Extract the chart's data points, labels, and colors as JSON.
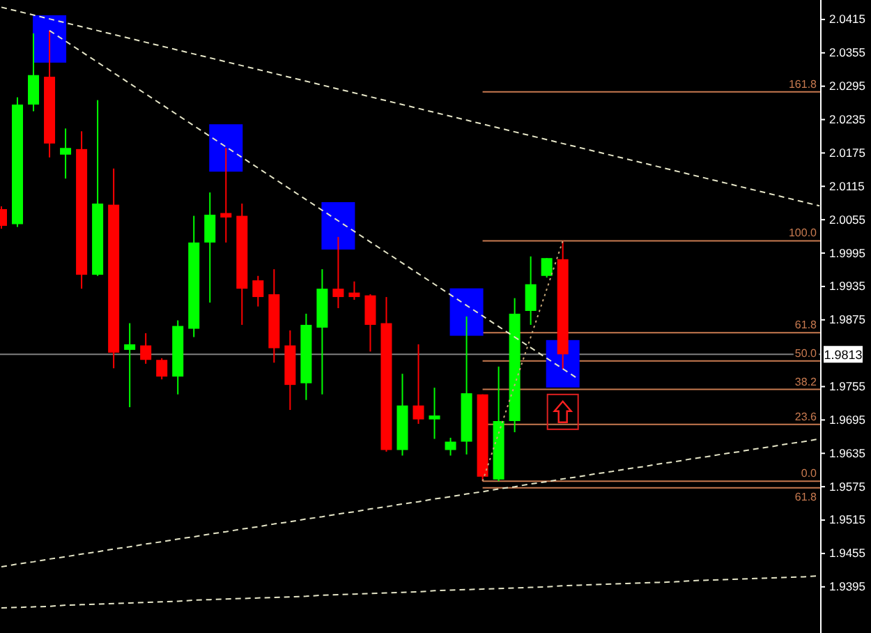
{
  "chart_data": {
    "type": "candlestick",
    "tick_labels": "y",
    "grid": false,
    "annotations": [
      {
        "text": "161.8",
        "y": 2.0285
      },
      {
        "text": "100.0",
        "y": 2.0017
      },
      {
        "text": "61.8",
        "y": 1.9852
      },
      {
        "text": "50.0",
        "y": 1.9801
      },
      {
        "text": "38.2",
        "y": 1.975
      },
      {
        "text": "23.6",
        "y": 1.9687
      },
      {
        "text": "0.0",
        "y": 1.9585
      },
      {
        "text": "61.8",
        "y": 1.9573
      }
    ],
    "categories": [
      null,
      null,
      null,
      null,
      null,
      null,
      null,
      null,
      null,
      null,
      null,
      null,
      null,
      null,
      null,
      null,
      null,
      null,
      null,
      null,
      null,
      null,
      null,
      null,
      null,
      null,
      null,
      null,
      null,
      null,
      null,
      null,
      null,
      null,
      null,
      null,
      null,
      null,
      null,
      null,
      null,
      null,
      null,
      null,
      null,
      null,
      null,
      null,
      null,
      null,
      null,
      null
    ],
    "ohlc": [
      [
        2.0074,
        2.0079,
        2.0039,
        2.0044
      ],
      [
        2.0047,
        2.0275,
        2.0042,
        2.0262
      ],
      [
        2.0262,
        2.039,
        2.025,
        2.0315
      ],
      [
        2.0312,
        2.0395,
        2.0167,
        2.0192
      ],
      [
        2.0172,
        2.0219,
        2.0129,
        2.0184
      ],
      [
        2.0182,
        2.0214,
        1.9931,
        1.9956
      ],
      [
        1.9956,
        2.027,
        1.9954,
        2.0084
      ],
      [
        2.0082,
        2.0147,
        1.9788,
        1.9816
      ],
      [
        1.9821,
        1.9869,
        1.9718,
        1.9831
      ],
      [
        1.9829,
        1.9851,
        1.9796,
        1.9803
      ],
      [
        1.9803,
        1.9806,
        1.9768,
        1.9773
      ],
      [
        1.9773,
        1.9874,
        1.9741,
        1.9864
      ],
      [
        1.9859,
        2.0062,
        1.9844,
        2.0014
      ],
      [
        2.0014,
        2.0104,
        1.9906,
        2.0064
      ],
      [
        2.0067,
        2.0184,
        2.0014,
        2.0059
      ],
      [
        2.0062,
        2.0084,
        1.9866,
        1.9931
      ],
      [
        1.9946,
        1.9954,
        1.9899,
        1.9916
      ],
      [
        1.9921,
        1.9966,
        1.9798,
        1.9824
      ],
      [
        1.9829,
        1.9856,
        1.9713,
        1.9758
      ],
      [
        1.9761,
        1.9886,
        1.9731,
        1.9866
      ],
      [
        1.9861,
        1.9966,
        1.9741,
        1.9931
      ],
      [
        1.9931,
        2.0024,
        1.9896,
        1.9916
      ],
      [
        1.9924,
        1.9944,
        1.9911,
        1.9916
      ],
      [
        1.9919,
        1.9921,
        1.9818,
        1.9866
      ],
      [
        1.9869,
        1.9916,
        1.9638,
        1.9641
      ],
      [
        1.9641,
        1.9778,
        1.9631,
        1.9721
      ],
      [
        1.9721,
        1.9831,
        1.9688,
        1.9696
      ],
      [
        1.9696,
        1.9753,
        1.9661,
        1.9703
      ],
      [
        1.9641,
        1.9663,
        1.9631,
        1.9656
      ],
      [
        1.9656,
        1.9881,
        1.9633,
        1.9743
      ],
      [
        1.9741,
        1.9741,
        1.9585,
        1.9593
      ],
      [
        1.9588,
        1.9791,
        1.9585,
        1.9693
      ],
      [
        1.9693,
        1.9914,
        1.9673,
        1.9886
      ],
      [
        1.9891,
        1.9989,
        1.9866,
        1.9939
      ],
      [
        1.9954,
        1.9986,
        1.9951,
        1.9986
      ],
      [
        1.9984,
        2.0017,
        1.9786,
        1.9813
      ],
      null,
      null,
      null,
      null,
      null,
      null,
      null,
      null,
      null,
      null,
      null,
      null,
      null,
      null,
      null,
      null
    ],
    "colors": [
      "#ff0000",
      "#00ff00",
      "#00ff00",
      "#ff0000",
      "#00ff00",
      "#ff0000",
      "#00ff00",
      "#ff0000",
      "#00ff00",
      "#ff0000",
      "#ff0000",
      "#00ff00",
      "#00ff00",
      "#00ff00",
      "#ff0000",
      "#ff0000",
      "#ff0000",
      "#ff0000",
      "#ff0000",
      "#00ff00",
      "#00ff00",
      "#ff0000",
      "#ff0000",
      "#ff0000",
      "#ff0000",
      "#00ff00",
      "#ff0000",
      "#00ff00",
      "#00ff00",
      "#00ff00",
      "#ff0000",
      "#00ff00",
      "#00ff00",
      "#00ff00",
      "#00ff00",
      "#ff0000",
      null,
      null,
      null,
      null,
      null,
      null,
      null,
      null,
      null,
      null,
      null,
      null,
      null,
      null,
      null,
      null
    ],
    "ylim": [
      1.9312,
      2.045
    ],
    "yticks": [
      2.0415,
      2.0355,
      2.0295,
      2.0235,
      2.0175,
      2.0115,
      2.0055,
      1.9995,
      1.9935,
      1.9875,
      1.9755,
      1.9695,
      1.9635,
      1.9575,
      1.9515,
      1.9455,
      1.9395
    ],
    "ref_lines": [
      {
        "axis": "y",
        "value": 2.0285,
        "color": "#c87a50"
      },
      {
        "axis": "y",
        "value": 2.0017,
        "color": "#c87a50"
      },
      {
        "axis": "y",
        "value": 1.9852,
        "color": "#c87a50"
      },
      {
        "axis": "y",
        "value": 1.9801,
        "color": "#c87a50"
      },
      {
        "axis": "y",
        "value": 1.975,
        "color": "#c87a50"
      },
      {
        "axis": "y",
        "value": 1.9687,
        "color": "#c87a50"
      },
      {
        "axis": "y",
        "value": 1.9585,
        "color": "#c87a50"
      },
      {
        "axis": "y",
        "value": 1.9573,
        "color": "#c87a50"
      },
      {
        "axis": "y",
        "value": 1.9813,
        "label": "1.9813",
        "color": "#808080"
      }
    ],
    "series": [
      {
        "type": "scatter",
        "marker": "square",
        "color": "#0000ff",
        "values": [
          null,
          null,
          null,
          2.038,
          null,
          null,
          null,
          null,
          null,
          null,
          null,
          null,
          null,
          null,
          2.0184,
          null,
          null,
          null,
          null,
          null,
          null,
          2.0044,
          null,
          null,
          null,
          null,
          null,
          null,
          null,
          1.9889,
          null,
          null,
          null,
          null,
          null,
          1.9796,
          null,
          null,
          null,
          null,
          null,
          null,
          null,
          null,
          null,
          null,
          null,
          null,
          null,
          null,
          null,
          null
        ]
      },
      {
        "type": "line",
        "line_style": "dashed",
        "color": "#e6e6c8",
        "values": [
          2.0437,
          2.043,
          2.0423,
          2.0416,
          2.0409,
          2.0402,
          2.0395,
          2.0388,
          2.0381,
          2.0374,
          2.0367,
          2.036,
          2.0353,
          2.0346,
          2.0339,
          2.0332,
          2.0325,
          2.0318,
          2.0311,
          2.0304,
          2.0297,
          2.029,
          2.0283,
          2.0276,
          2.0269,
          2.0262,
          2.0255,
          2.0248,
          2.0241,
          2.0234,
          2.0227,
          2.022,
          2.0213,
          2.0206,
          2.0199,
          2.0192,
          2.0185,
          2.0178,
          2.0171,
          2.0164,
          2.0157,
          2.015,
          2.0143,
          2.0136,
          2.0129,
          2.0122,
          2.0115,
          2.0108,
          2.0101,
          2.0094,
          2.0087,
          2.008
        ]
      },
      {
        "type": "line",
        "line_style": "dashed",
        "color": "#e6e6c8",
        "values": [
          null,
          null,
          null,
          2.0395,
          2.0376,
          2.0357,
          2.0338,
          2.0319,
          2.03,
          2.0281,
          2.0262,
          2.0243,
          2.0224,
          2.0205,
          2.0186,
          2.0167,
          2.0148,
          2.0129,
          2.011,
          2.0091,
          2.0072,
          2.0053,
          2.0034,
          2.0015,
          1.9996,
          1.9977,
          1.9958,
          1.9939,
          1.992,
          1.9901,
          1.9882,
          1.9863,
          1.9844,
          1.9825,
          1.9806,
          1.9787,
          1.9768,
          null,
          null,
          null,
          null,
          null,
          null,
          null,
          null,
          null,
          null,
          null,
          null,
          null,
          null,
          null
        ]
      },
      {
        "type": "line",
        "line_style": "dashed",
        "color": "#e6e6c8",
        "values": [
          1.9431,
          1.9436,
          1.944,
          1.9445,
          1.9449,
          1.9454,
          1.9458,
          1.9463,
          1.9467,
          1.9472,
          1.9476,
          1.9481,
          1.9485,
          1.949,
          1.9494,
          1.9499,
          1.9503,
          1.9508,
          1.9512,
          1.9517,
          1.9521,
          1.9526,
          1.953,
          1.9535,
          1.9539,
          1.9544,
          1.9548,
          1.9553,
          1.9557,
          1.9562,
          1.9566,
          1.9571,
          1.9575,
          1.958,
          1.9584,
          1.9589,
          1.9593,
          1.9598,
          1.9602,
          1.9607,
          1.9611,
          1.9616,
          1.962,
          1.9625,
          1.9629,
          1.9634,
          1.9638,
          1.9643,
          1.9647,
          1.9652,
          1.9656,
          1.9661
        ]
      },
      {
        "type": "line",
        "line_style": "dashed",
        "color": "#e6e6c8",
        "values": [
          1.9357,
          1.9358,
          1.9359,
          1.936,
          1.9362,
          1.9363,
          1.9364,
          1.9365,
          1.9366,
          1.9367,
          1.9368,
          1.9369,
          1.9371,
          1.9372,
          1.9373,
          1.9374,
          1.9375,
          1.9376,
          1.9377,
          1.9378,
          1.938,
          1.9381,
          1.9382,
          1.9383,
          1.9384,
          1.9385,
          1.9386,
          1.9388,
          1.9389,
          1.939,
          1.9391,
          1.9392,
          1.9393,
          1.9394,
          1.9395,
          1.9397,
          1.9398,
          1.9399,
          1.94,
          1.9401,
          1.9402,
          1.9403,
          1.9404,
          1.9406,
          1.9407,
          1.9408,
          1.9409,
          1.941,
          1.9411,
          1.9412,
          1.9413,
          1.9415
        ]
      },
      {
        "type": "line",
        "line_style": "dotted",
        "color": "#c8a878",
        "values": [
          null,
          null,
          null,
          null,
          null,
          null,
          null,
          null,
          null,
          null,
          null,
          null,
          null,
          null,
          null,
          null,
          null,
          null,
          null,
          null,
          null,
          null,
          null,
          null,
          null,
          null,
          null,
          null,
          null,
          null,
          1.9585,
          1.9671,
          1.9758,
          1.9844,
          1.993,
          2.0017,
          null,
          null,
          null,
          null,
          null,
          null,
          null,
          null,
          null,
          null,
          null,
          null,
          null,
          null,
          null,
          null
        ]
      }
    ]
  }
}
